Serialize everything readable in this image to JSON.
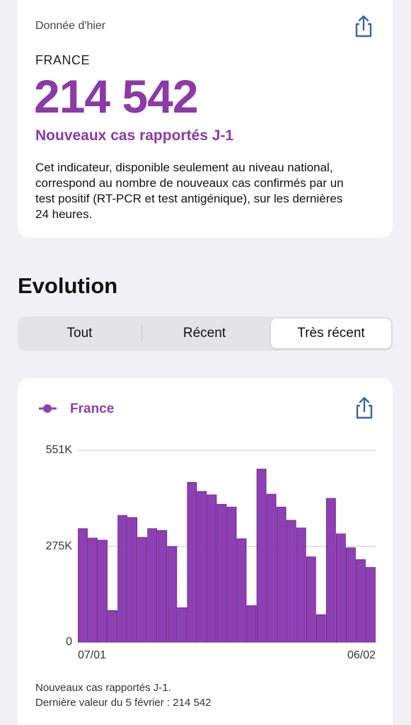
{
  "summary": {
    "date_label": "Donnée d'hier",
    "region": "FRANCE",
    "value": "214 542",
    "indicator": "Nouveaux cas rapportés J-1",
    "description": "Cet indicateur, disponible seulement au niveau national, correspond au nombre de nouveaux cas confirmés par un test positif (RT-PCR et test antigénique), sur les dernières 24 heures."
  },
  "section_title": "Evolution",
  "segments": [
    "Tout",
    "Récent",
    "Très récent"
  ],
  "chart_data": {
    "type": "bar",
    "categories": [
      "07/01",
      null,
      null,
      null,
      null,
      null,
      null,
      null,
      null,
      null,
      null,
      null,
      null,
      null,
      null,
      null,
      null,
      null,
      null,
      null,
      null,
      null,
      null,
      null,
      null,
      null,
      null,
      null,
      null,
      "06/02"
    ],
    "series": [
      {
        "name": "France",
        "color": "#8e3fb3",
        "values": [
          326000,
          299000,
          293000,
          91000,
          364000,
          358000,
          301000,
          326000,
          321000,
          275000,
          99000,
          459000,
          433000,
          423000,
          396000,
          388000,
          297000,
          105000,
          497000,
          425000,
          388000,
          350000,
          328000,
          245000,
          79000,
          413000,
          311000,
          271000,
          237000,
          214542
        ]
      }
    ],
    "ylim": [
      0,
      551000
    ],
    "yticks": [
      0,
      {
        "value": 275000,
        "label": "275K"
      },
      {
        "value": 551000,
        "label": "551K"
      }
    ],
    "grid": true
  },
  "chart_footer": [
    "Nouveaux cas rapportés J-1.",
    "Dernière valeur du 5 février : 214 542"
  ]
}
